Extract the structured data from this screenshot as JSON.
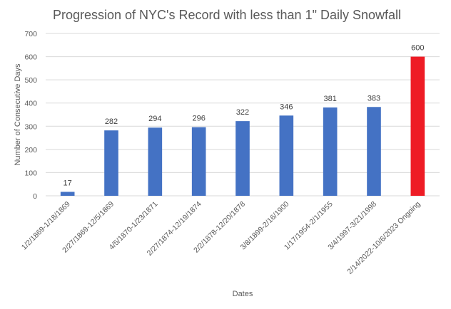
{
  "chart_data": {
    "type": "bar",
    "title": "Progression of NYC's Record with less than 1\" Daily Snowfall",
    "xlabel": "Dates",
    "ylabel": "Number of Consecutive Days",
    "ylim": [
      0,
      700
    ],
    "yticks": [
      0,
      100,
      200,
      300,
      400,
      500,
      600,
      700
    ],
    "grid": true,
    "legend": "none",
    "categories": [
      "1/2/1869-1/18/1869",
      "2/27/1869-12/5/1869",
      "4/5/1870-1/23/1871",
      "2/27/1874-12/19/1874",
      "2/2/1878-12/20/1878",
      "3/8/1899-2/16/1900",
      "1/17/1954-2/1/1955",
      "3/4/1997-3/21/1998",
      "2/14/2022-10/6/2023 Ongoing"
    ],
    "values": [
      17,
      282,
      294,
      296,
      322,
      346,
      381,
      383,
      600
    ],
    "colors": [
      "#4472c4",
      "#4472c4",
      "#4472c4",
      "#4472c4",
      "#4472c4",
      "#4472c4",
      "#4472c4",
      "#4472c4",
      "#ee1c25"
    ]
  }
}
